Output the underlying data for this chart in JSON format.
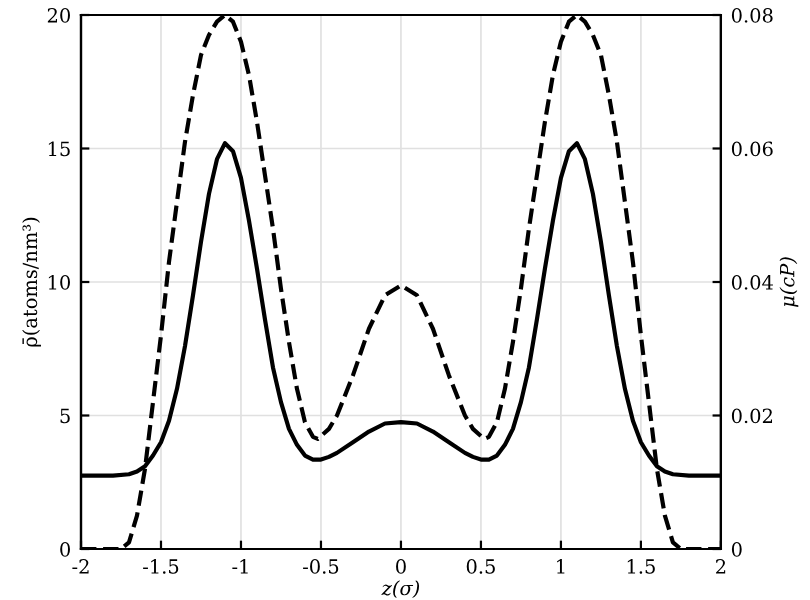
{
  "chart_data": {
    "type": "line",
    "xlabel": "z(σ)",
    "ylabel": "ρ̄(atoms/nm³)",
    "y2label": "μ(cP)",
    "xlim": [
      -2,
      2
    ],
    "xticks": [
      -2,
      -1.5,
      -1,
      -0.5,
      0,
      0.5,
      1,
      1.5,
      2
    ],
    "ylim": [
      0,
      20
    ],
    "yticks": [
      0,
      5,
      10,
      15,
      20
    ],
    "y2lim": [
      0,
      0.08
    ],
    "y2ticks": [
      0,
      0.02,
      0.04,
      0.06,
      0.08
    ],
    "grid": true,
    "legend": false,
    "series": [
      {
        "color": "#000000",
        "line_style": "solid",
        "x": [
          -2,
          -1.8,
          -1.7,
          -1.65,
          -1.6,
          -1.55,
          -1.5,
          -1.45,
          -1.4,
          -1.35,
          -1.3,
          -1.25,
          -1.2,
          -1.15,
          -1.1,
          -1.05,
          -1.0,
          -0.95,
          -0.9,
          -0.85,
          -0.8,
          -0.75,
          -0.7,
          -0.65,
          -0.6,
          -0.55,
          -0.5,
          -0.45,
          -0.4,
          -0.3,
          -0.2,
          -0.1,
          0,
          0.1,
          0.2,
          0.3,
          0.4,
          0.45,
          0.5,
          0.55,
          0.6,
          0.65,
          0.7,
          0.75,
          0.8,
          0.85,
          0.9,
          0.95,
          1.0,
          1.05,
          1.1,
          1.15,
          1.2,
          1.25,
          1.3,
          1.35,
          1.4,
          1.45,
          1.5,
          1.55,
          1.6,
          1.65,
          1.7,
          1.8,
          2
        ],
        "values": [
          2.75,
          2.75,
          2.8,
          2.9,
          3.1,
          3.5,
          4.0,
          4.8,
          6.0,
          7.6,
          9.5,
          11.5,
          13.3,
          14.6,
          15.2,
          14.9,
          13.9,
          12.3,
          10.5,
          8.6,
          6.8,
          5.5,
          4.5,
          3.9,
          3.5,
          3.35,
          3.35,
          3.45,
          3.6,
          4.0,
          4.4,
          4.7,
          4.75,
          4.7,
          4.4,
          4.0,
          3.6,
          3.45,
          3.35,
          3.35,
          3.5,
          3.9,
          4.5,
          5.5,
          6.8,
          8.6,
          10.5,
          12.3,
          13.9,
          14.9,
          15.2,
          14.6,
          13.3,
          11.5,
          9.5,
          7.6,
          6.0,
          4.8,
          4.0,
          3.5,
          3.1,
          2.9,
          2.8,
          2.75,
          2.75
        ]
      },
      {
        "color": "#000000",
        "line_style": "dashed",
        "axis": "y2",
        "x": [
          -2,
          -1.75,
          -1.7,
          -1.65,
          -1.6,
          -1.55,
          -1.5,
          -1.45,
          -1.4,
          -1.35,
          -1.3,
          -1.25,
          -1.2,
          -1.15,
          -1.1,
          -1.05,
          -1.0,
          -0.95,
          -0.9,
          -0.85,
          -0.8,
          -0.75,
          -0.7,
          -0.65,
          -0.6,
          -0.55,
          -0.52,
          -0.45,
          -0.4,
          -0.3,
          -0.2,
          -0.1,
          0,
          0.1,
          0.2,
          0.3,
          0.4,
          0.45,
          0.52,
          0.55,
          0.6,
          0.65,
          0.7,
          0.75,
          0.8,
          0.85,
          0.9,
          0.95,
          1.0,
          1.05,
          1.1,
          1.15,
          1.2,
          1.25,
          1.3,
          1.35,
          1.4,
          1.45,
          1.5,
          1.55,
          1.6,
          1.65,
          1.7,
          1.75,
          2
        ],
        "values": [
          0,
          0,
          0.001,
          0.005,
          0.012,
          0.022,
          0.032,
          0.043,
          0.052,
          0.061,
          0.068,
          0.074,
          0.077,
          0.079,
          0.08,
          0.079,
          0.076,
          0.071,
          0.064,
          0.056,
          0.048,
          0.039,
          0.031,
          0.024,
          0.019,
          0.0168,
          0.0165,
          0.018,
          0.02,
          0.026,
          0.033,
          0.038,
          0.0395,
          0.038,
          0.033,
          0.026,
          0.02,
          0.018,
          0.0165,
          0.0168,
          0.019,
          0.024,
          0.031,
          0.039,
          0.048,
          0.056,
          0.064,
          0.071,
          0.076,
          0.079,
          0.08,
          0.079,
          0.077,
          0.074,
          0.068,
          0.061,
          0.052,
          0.043,
          0.032,
          0.022,
          0.012,
          0.005,
          0.001,
          0,
          0
        ]
      }
    ]
  }
}
